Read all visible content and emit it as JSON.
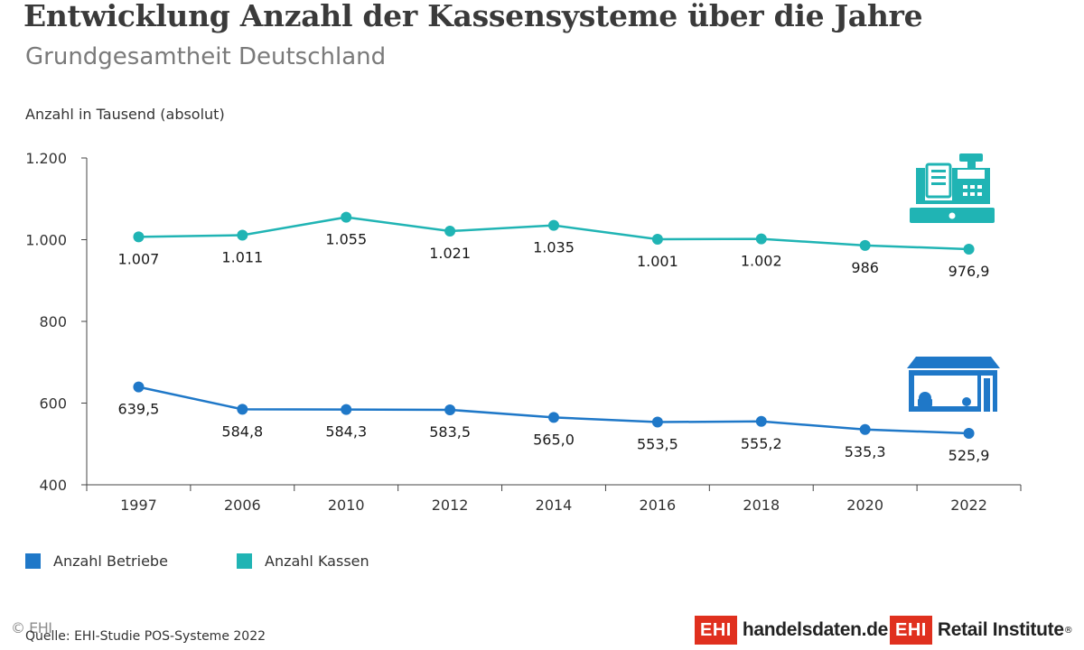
{
  "title": "Entwicklung Anzahl der Kassensysteme über die Jahre",
  "subtitle": "Grundgesamtheit Deutschland",
  "chart_data": {
    "type": "line",
    "title": "Entwicklung Anzahl der Kassensysteme über die Jahre",
    "subtitle": "Grundgesamtheit Deutschland",
    "ylabel": "Anzahl in Tausend (absolut)",
    "xlabel": "",
    "categories": [
      "1997",
      "2006",
      "2010",
      "2012",
      "2014",
      "2016",
      "2018",
      "2020",
      "2022"
    ],
    "ylim": [
      400,
      1200
    ],
    "yticks": [
      400,
      600,
      800,
      1000,
      1200
    ],
    "ytick_labels": [
      "400",
      "600",
      "800",
      "1.000",
      "1.200"
    ],
    "grid": false,
    "legend_position": "bottom-left",
    "series": [
      {
        "name": "Anzahl Betriebe",
        "color": "#1f78c8",
        "values": [
          639.5,
          584.8,
          584.3,
          583.5,
          565.0,
          553.5,
          555.2,
          535.3,
          525.9
        ],
        "labels": [
          "639,5",
          "584,8",
          "584,3",
          "583,5",
          "565,0",
          "553,5",
          "555,2",
          "535,3",
          "525,9"
        ]
      },
      {
        "name": "Anzahl Kassen",
        "color": "#20b4b4",
        "values": [
          1007,
          1011,
          1055,
          1021,
          1035,
          1001,
          1002,
          986,
          976.9
        ],
        "labels": [
          "1.007",
          "1.011",
          "1.055",
          "1.021",
          "1.035",
          "1.001",
          "1.002",
          "986",
          "976,9"
        ]
      }
    ]
  },
  "icons": {
    "register": "cash-register-icon",
    "store": "store-icon"
  },
  "footer": {
    "source": "Quelle: EHI-Studie POS-Systeme 2022",
    "copyright": "© EHI",
    "logo1_box": "EHI",
    "logo1_text": "handelsdaten.de",
    "logo2_box": "EHI",
    "logo2_text": "Retail Institute",
    "logo2_reg": "®"
  }
}
